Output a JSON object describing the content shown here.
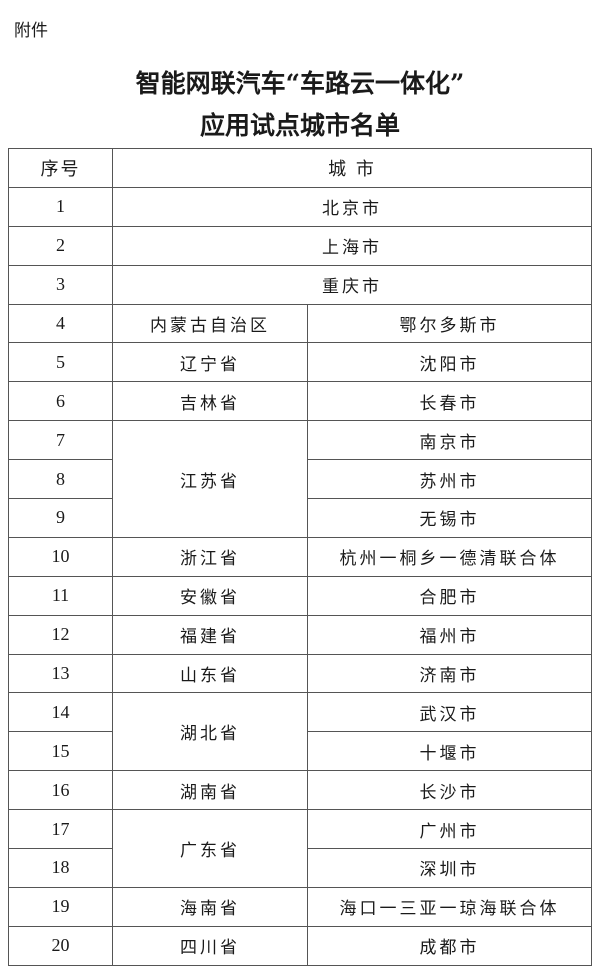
{
  "attachment_label": "附件",
  "title_line1": "智能网联汽车“车路云一体化”",
  "title_line2": "应用试点城市名单",
  "table": {
    "headers": {
      "index": "序号",
      "city": "城 市"
    },
    "rows": [
      {
        "no": "1",
        "province": "",
        "city": "北京市"
      },
      {
        "no": "2",
        "province": "",
        "city": "上海市"
      },
      {
        "no": "3",
        "province": "",
        "city": "重庆市"
      },
      {
        "no": "4",
        "province": "内蒙古自治区",
        "city": "鄂尔多斯市"
      },
      {
        "no": "5",
        "province": "辽宁省",
        "city": "沈阳市"
      },
      {
        "no": "6",
        "province": "吉林省",
        "city": "长春市"
      },
      {
        "no": "7",
        "province": "江苏省",
        "city": "南京市"
      },
      {
        "no": "8",
        "province": "江苏省",
        "city": "苏州市"
      },
      {
        "no": "9",
        "province": "江苏省",
        "city": "无锡市"
      },
      {
        "no": "10",
        "province": "浙江省",
        "city": "杭州一桐乡一德清联合体"
      },
      {
        "no": "11",
        "province": "安徽省",
        "city": "合肥市"
      },
      {
        "no": "12",
        "province": "福建省",
        "city": "福州市"
      },
      {
        "no": "13",
        "province": "山东省",
        "city": "济南市"
      },
      {
        "no": "14",
        "province": "湖北省",
        "city": "武汉市"
      },
      {
        "no": "15",
        "province": "湖北省",
        "city": "十堰市"
      },
      {
        "no": "16",
        "province": "湖南省",
        "city": "长沙市"
      },
      {
        "no": "17",
        "province": "广东省",
        "city": "广州市"
      },
      {
        "no": "18",
        "province": "广东省",
        "city": "深圳市"
      },
      {
        "no": "19",
        "province": "海南省",
        "city": "海口一三亚一琼海联合体"
      },
      {
        "no": "20",
        "province": "四川省",
        "city": "成都市"
      }
    ]
  }
}
